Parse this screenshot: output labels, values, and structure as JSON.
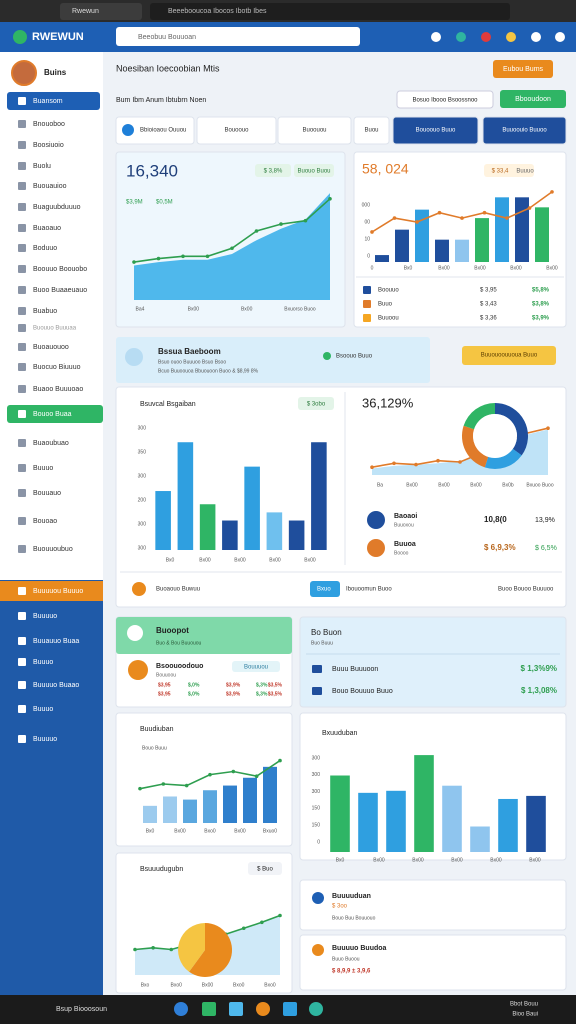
{
  "browser": {
    "tab1": "Rwewun",
    "tab2": "Beeebooucoa Ibocos Ibotb Ibes"
  },
  "header": {
    "logo": "RWEWUN",
    "search": "Beeobuu Bouuoan"
  },
  "sidebar": {
    "user": "Buins",
    "items": [
      "Buansom",
      "Bnouoboo",
      "Boosiuoio",
      "Buolu",
      "Buouauioo",
      "Buaguubduuuo",
      "Buaoauo",
      "Boduuo",
      "Boouuo Boouobo",
      "Buoo Buaaeuauo",
      "Buabuo",
      "Buouuo Buuuaa",
      "Buoauouoo",
      "Buocuo Biuuuo",
      "Buaoo Buuuoao",
      "Bouoo Buaa",
      "Buaoubuao",
      "Buuuo",
      "Bouuauo",
      "Bouoao",
      "Buouuoubuo",
      "Buuuuou Buuuo",
      "Buuuuo",
      "Buuauuo Buaa",
      "Buuuo",
      "Buuuuo Buaao",
      "Buuuo",
      "Buuuuo"
    ]
  },
  "page": {
    "title": "Noesiban Ioecoobian Mtis",
    "button": "Eubou Bums",
    "subtitle": "Bum Ibm Anum Ibtubrn Noen",
    "filter": "Bosuo Ibooo Bsoossnoo",
    "button2": "Bbooudoon",
    "tabs": [
      "Bbioioaou Ouuou",
      "Bouoouo",
      "Buoouou",
      "Buou",
      "Bouoouo Buuo",
      "Buuoouio Buuoo"
    ]
  },
  "card1": {
    "value": "16,340",
    "badge": "$ 3,8%",
    "badge2": "Buouo Buou",
    "sub": "$3,9M",
    "sub2": "$0,5M",
    "labels": [
      "Ba4",
      "Bx00",
      "Bx00",
      "Bxuorso Buoo"
    ],
    "chart": {
      "type": "line",
      "ylim": [
        0,
        100
      ],
      "series": [
        {
          "type": "area",
          "color": "#4fb8ec",
          "values": [
            30,
            33,
            35,
            35,
            40,
            52,
            62,
            70,
            93
          ]
        },
        {
          "type": "line",
          "color": "#2e9e4f",
          "values": [
            33,
            36,
            38,
            38,
            45,
            60,
            66,
            69,
            88
          ]
        }
      ]
    }
  },
  "card2": {
    "value": "58, 024",
    "badge": "$ 33,4",
    "badge2": "Buuuo",
    "axis_labels": [
      "000",
      "00",
      "10",
      "0"
    ],
    "x_labels": [
      "0",
      "Bx0",
      "Bx00",
      "Bx00",
      "Bx00",
      "Bx00"
    ],
    "chart": {
      "type": "bar",
      "ylim": [
        0,
        100
      ],
      "series": [
        {
          "type": "bar",
          "colors": [
            "#1f4e9c",
            "#1f4e9c",
            "#2f9fe0",
            "#1f4e9c",
            "#8fc5ee",
            "#2fb565",
            "#2f9fe0",
            "#1f4e9c",
            "#2fb565"
          ],
          "values": [
            9,
            42,
            68,
            29,
            29,
            57,
            84,
            84,
            71
          ]
        },
        {
          "type": "line",
          "color": "#e07b2a",
          "values": [
            39,
            57,
            52,
            64,
            57,
            64,
            57,
            70,
            91
          ]
        }
      ]
    },
    "rows": [
      [
        "Boouuo",
        "$ 3,95",
        "$5,8%"
      ],
      [
        "Buuo",
        "$ 3,43",
        "$3,8%"
      ],
      [
        "Buuoou",
        "$ 3,36",
        "$3,9%"
      ]
    ]
  },
  "banner": {
    "title": "Bssua Baeboom",
    "line1": "Bsuo ouoo Buuuoo Bsuo Bsoo",
    "line2": "Bcuo Buuoouoa Bbuouoon Buoo & $8,99 8%",
    "status": "Bsoouo Buuo",
    "button": "Buuouoouuoua Buuo"
  },
  "card3": {
    "title": "Bsuvcal Bsgaiban",
    "badge": "$ 3obo",
    "axis_labels": [
      "300",
      "350",
      "300",
      "200",
      "300",
      "300"
    ],
    "x_labels": [
      "Bx0",
      "Bx00",
      "Bx00",
      "Bx00",
      "Bx00"
    ],
    "chart": {
      "type": "bar",
      "ylim": [
        0,
        120
      ],
      "series": [
        {
          "type": "bar",
          "colors": [
            "#2f9fe0",
            "#2f9fe0",
            "#2fb565",
            "#1f4e9c",
            "#2f9fe0",
            "#6fc0ee",
            "#1f4e9c",
            "#1f4e9c"
          ],
          "values": [
            58,
            106,
            45,
            29,
            82,
            37,
            29,
            106
          ]
        }
      ]
    }
  },
  "card4": {
    "value": "36,129%",
    "x_labels": [
      "Ba",
      "Bx00",
      "Bx00",
      "Bx00",
      "Bx0b",
      "Bxuoo Buoo"
    ],
    "chart": {
      "type": "line",
      "ylim": [
        0,
        100
      ],
      "series": [
        {
          "type": "area",
          "color": "#bfe3f7",
          "values": [
            10,
            14,
            16,
            18,
            22,
            30,
            45,
            62,
            70
          ]
        },
        {
          "type": "line",
          "color": "#e07b2a",
          "values": [
            12,
            18,
            16,
            22,
            20,
            34,
            50,
            64,
            72
          ]
        }
      ]
    },
    "donut": {
      "type": "donut",
      "colors": [
        "#1f4e9c",
        "#2f9fe0",
        "#e07b2a",
        "#2fb565"
      ],
      "values": [
        35,
        20,
        25,
        20
      ]
    },
    "rows": [
      [
        "Baoaoi",
        "Buuoxou",
        "10,8(0",
        "13,9%"
      ],
      [
        "Buuoa",
        "Boooo",
        "$ 6,9,3%",
        "$ 6,5%"
      ]
    ]
  },
  "footer": [
    "Buoaouo Buwuu",
    "Bxuo",
    "Ibouoomun Buoo",
    "Buoo Bouoo Buuuoo"
  ],
  "card5": {
    "title": "Buoopot",
    "sub": "Buo & Bou Buuouou",
    "name": "Bsoouoodouo",
    "name2": "Bouuoou",
    "tag": "Bouuuou",
    "row1": [
      "$3,95",
      "$,0%",
      "$3,9%",
      "$,3%",
      "$3,5%"
    ],
    "row2": [
      "$3,95",
      "$,0%",
      "$3,9%",
      "$,3%",
      "$3,5%"
    ]
  },
  "card6": {
    "title": "Bo Buon",
    "sub": "Buo Buuu",
    "row1": "Buuu Buuuoon",
    "val1": "$ 1,3%9%",
    "row2": "Bouo Bouuuo Buuo",
    "val2": "$ 1,3,08%"
  },
  "card7": {
    "title": "Buudiuban",
    "legend": "Bouo Buuu",
    "x_labels": [
      "Bx0",
      "Bx00",
      "Bxo0",
      "Bx00",
      "Bxuo0"
    ],
    "chart": {
      "type": "bar",
      "ylim": [
        0,
        100
      ],
      "series": [
        {
          "type": "bar",
          "colors": [
            "#9ccbee",
            "#9ccbee",
            "#5aa7df",
            "#5aa7df",
            "#2f7fcc",
            "#2f7fcc",
            "#2f7fcc"
          ],
          "values": [
            22,
            34,
            30,
            42,
            48,
            58,
            72
          ]
        },
        {
          "type": "line",
          "color": "#2e9e4f",
          "values": [
            44,
            50,
            48,
            62,
            66,
            60,
            80
          ]
        }
      ]
    }
  },
  "card8": {
    "title": "Bxuuduban",
    "axis_labels": [
      "300",
      "300",
      "300",
      "150",
      "150",
      "0"
    ],
    "x_labels": [
      "Bx0",
      "Bx00",
      "Bx00",
      "Bx00",
      "Bx00",
      "Bx00"
    ],
    "chart": {
      "type": "bar",
      "ylim": [
        0,
        100
      ],
      "series": [
        {
          "type": "bar",
          "colors": [
            "#2fb565",
            "#2f9fe0",
            "#2f9fe0",
            "#2fb565",
            "#8fc5ee",
            "#8fc5ee",
            "#2f9fe0",
            "#1f4e9c"
          ],
          "values": [
            75,
            58,
            60,
            95,
            65,
            25,
            52,
            55
          ]
        }
      ]
    }
  },
  "card9": {
    "title": "Bsuuudugubn",
    "badge": "$ Buo",
    "x_labels": [
      "Bxo",
      "Bxo0",
      "Bx00",
      "Bxo0",
      "Bxo0"
    ],
    "chart": {
      "type": "line",
      "ylim": [
        0,
        100
      ],
      "series": [
        {
          "type": "area",
          "color": "#cfe9f8",
          "values": [
            30,
            32,
            30,
            36,
            42,
            48,
            55,
            62,
            70
          ]
        },
        {
          "type": "line",
          "color": "#2e9e4f",
          "values": [
            30,
            32,
            30,
            36,
            42,
            48,
            55,
            62,
            70
          ]
        }
      ]
    },
    "pie": {
      "type": "pie",
      "colors": [
        "#e98a1d",
        "#f5c542"
      ],
      "values": [
        60,
        40
      ]
    }
  },
  "list1": {
    "title": "Buuuuduan",
    "badge": "$ 3oo",
    "sub": "Bouo Buu Bouuouo"
  },
  "list2": {
    "title": "Buuuuo Buudoa",
    "sub": "Buuo Buoou",
    "value": "$ 8,9,9 ± 3,9,6"
  },
  "taskbar": {
    "search": "Bsup Biooosoun",
    "time": "Bbot Bouu",
    "date": "Bioo Baui"
  }
}
